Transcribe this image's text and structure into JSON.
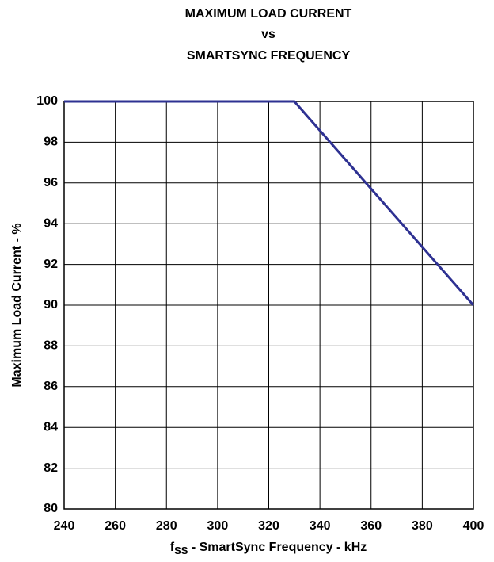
{
  "chart_data": {
    "type": "line",
    "title_lines": [
      "MAXIMUM LOAD CURRENT",
      "vs",
      "SMARTSYNC FREQUENCY"
    ],
    "xlabel": {
      "symbol": "f",
      "subscript": "SS",
      "text": " - SmartSync Frequency - kHz"
    },
    "ylabel": "Maximum Load Current - %",
    "x": [
      240,
      330,
      400
    ],
    "series": [
      {
        "color": "#2e3192",
        "values": [
          100,
          100,
          90
        ]
      }
    ],
    "xlim": [
      240,
      400
    ],
    "xticks": [
      240,
      260,
      280,
      300,
      320,
      340,
      360,
      380,
      400
    ],
    "ylim": [
      80,
      100
    ],
    "yticks": [
      80,
      82,
      84,
      86,
      88,
      90,
      92,
      94,
      96,
      98,
      100
    ],
    "grid": true
  }
}
